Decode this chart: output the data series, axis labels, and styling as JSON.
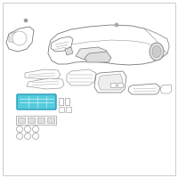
{
  "bg_color": "#ffffff",
  "border_color": "#bbbbbb",
  "line_color": "#999999",
  "line_color2": "#777777",
  "highlight_edge": "#2299bb",
  "highlight_fill": "#55ccdd",
  "figsize": [
    2.0,
    2.0
  ],
  "dpi": 100,
  "layout": {
    "xmin": 0,
    "xmax": 200,
    "ymin": 0,
    "ymax": 200
  }
}
